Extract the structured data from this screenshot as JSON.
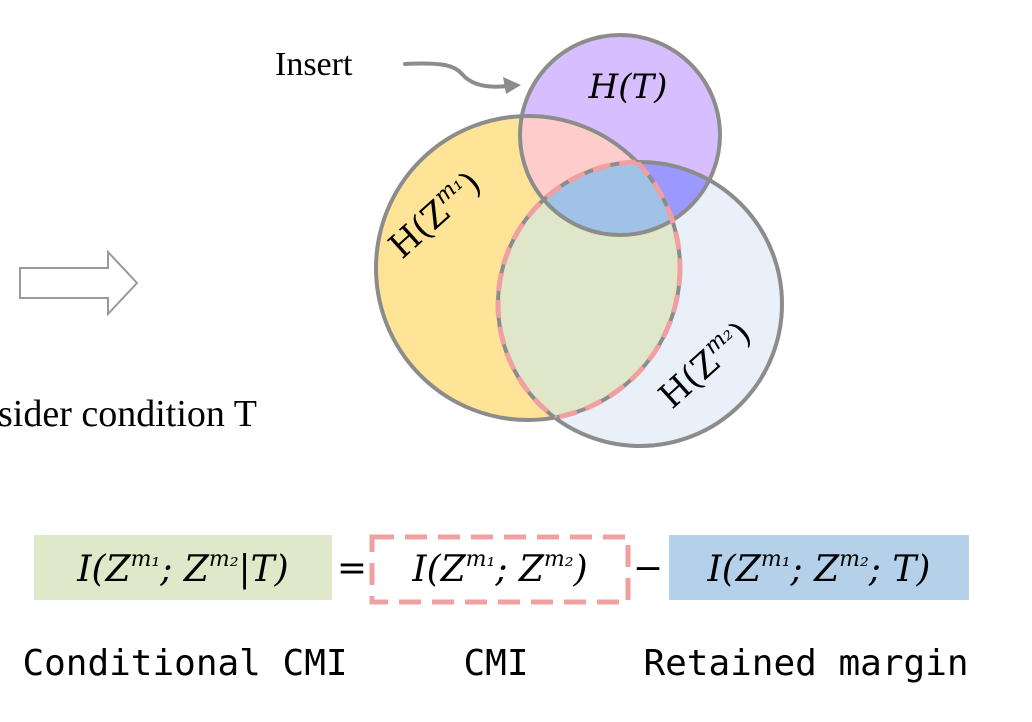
{
  "annotations": {
    "insert": "Insert",
    "consider": "sider condition T"
  },
  "venn": {
    "labels": {
      "t": "H(T)",
      "z1_prefix": "H(Z",
      "z1_sup": "m₁",
      "z1_suffix": ")",
      "z2_prefix": "H(Z",
      "z2_sup": "m₂",
      "z2_suffix": ")"
    },
    "colors": {
      "z1": "#ffe397",
      "z2": "#e9f0fa",
      "t": "#d7bfff",
      "z1_t": "#ffcccc",
      "z2_t": "#9b98ff",
      "z1_z2": "#dfe7c8",
      "center": "#9fc2e6",
      "outline": "#8c8c8c",
      "dash": "#f0a0a0"
    }
  },
  "equation": {
    "lhs": {
      "prefix": "I(Z",
      "sup1": "m₁",
      "mid": "; Z",
      "sup2": "m₂",
      "suffix": "|T)",
      "bg": "#dfe8c8"
    },
    "equals": "=",
    "cmi": {
      "prefix": "I(Z",
      "sup1": "m₁",
      "mid": "; Z",
      "sup2": "m₂",
      "suffix": ")"
    },
    "minus": "−",
    "rhs": {
      "prefix": "I(Z",
      "sup1": "m₁",
      "mid": "; Z",
      "sup2": "m₂",
      "suffix": "; T)",
      "bg": "#b5d1ea"
    }
  },
  "captions": {
    "conditional_cmi": "Conditional CMI",
    "cmi": "CMI",
    "retained_margin": "Retained margin"
  }
}
